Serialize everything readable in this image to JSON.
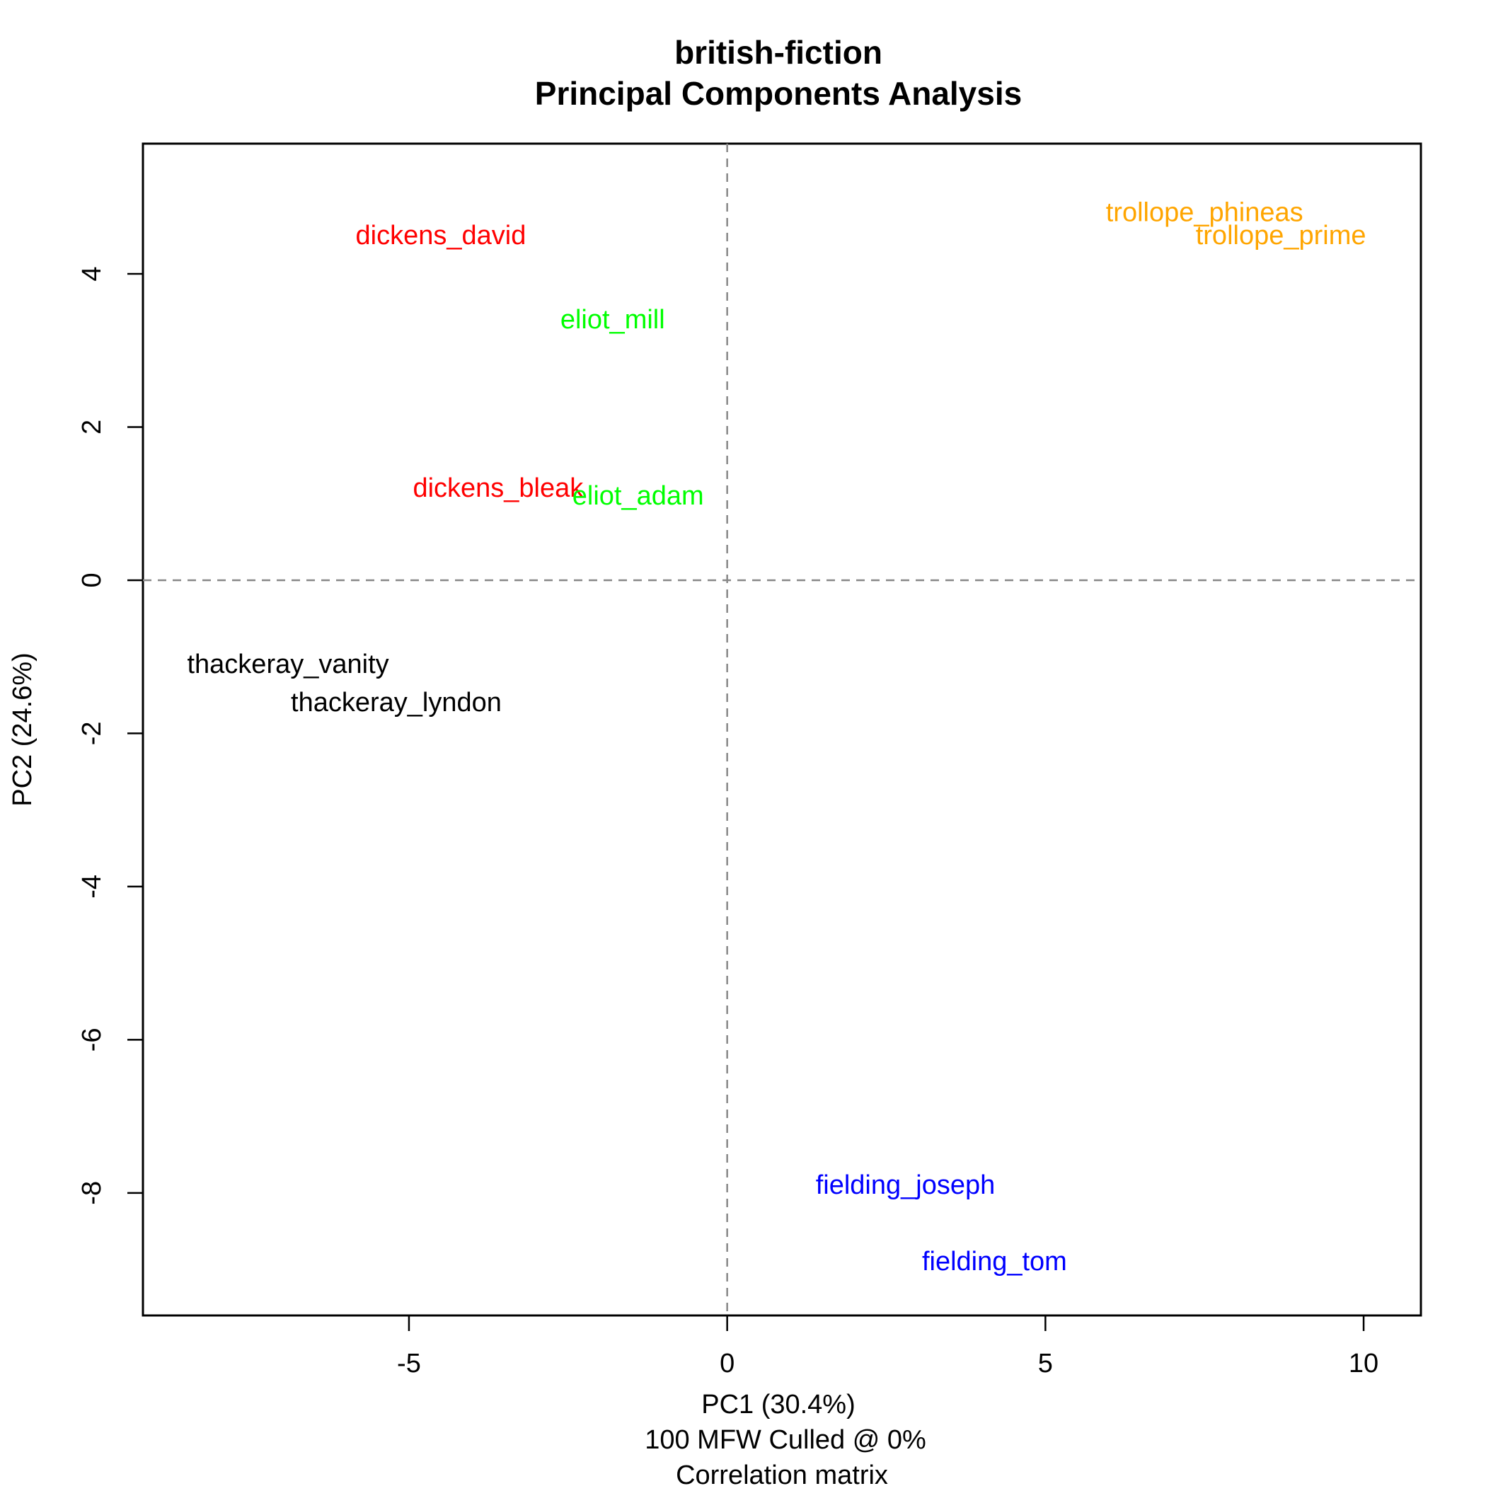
{
  "chart_data": {
    "type": "scatter",
    "title": "british-fiction",
    "subtitle": "Principal Components Analysis",
    "xlabel": "PC1 (30.4%)",
    "xlabel_notes": [
      "100 MFW  Culled @ 0%",
      "Correlation matrix"
    ],
    "ylabel": "PC2 (24.6%)",
    "xlim": [
      -9.18,
      10.9
    ],
    "ylim": [
      -9.6,
      5.7
    ],
    "xticks": [
      -5,
      0,
      5,
      10
    ],
    "yticks": [
      -8,
      -6,
      -4,
      -2,
      0,
      2,
      4
    ],
    "reference_lines": {
      "x": 0,
      "y": 0,
      "style": "dashed"
    },
    "grid": false,
    "points": [
      {
        "label": "dickens_david",
        "x": -4.5,
        "y": 4.5,
        "color": "#ff0000"
      },
      {
        "label": "dickens_bleak",
        "x": -3.6,
        "y": 1.2,
        "color": "#ff0000"
      },
      {
        "label": "eliot_mill",
        "x": -1.8,
        "y": 3.4,
        "color": "#00ff00"
      },
      {
        "label": "eliot_adam",
        "x": -1.4,
        "y": 1.1,
        "color": "#00ff00"
      },
      {
        "label": "trollope_phineas",
        "x": 7.5,
        "y": 4.8,
        "color": "#ffa500"
      },
      {
        "label": "trollope_prime",
        "x": 8.7,
        "y": 4.5,
        "color": "#ffa500"
      },
      {
        "label": "thackeray_vanity",
        "x": -6.9,
        "y": -1.1,
        "color": "#000000"
      },
      {
        "label": "thackeray_lyndon",
        "x": -5.2,
        "y": -1.6,
        "color": "#000000"
      },
      {
        "label": "fielding_joseph",
        "x": 2.8,
        "y": -7.9,
        "color": "#0000ff"
      },
      {
        "label": "fielding_tom",
        "x": 4.2,
        "y": -8.9,
        "color": "#0000ff"
      }
    ]
  }
}
